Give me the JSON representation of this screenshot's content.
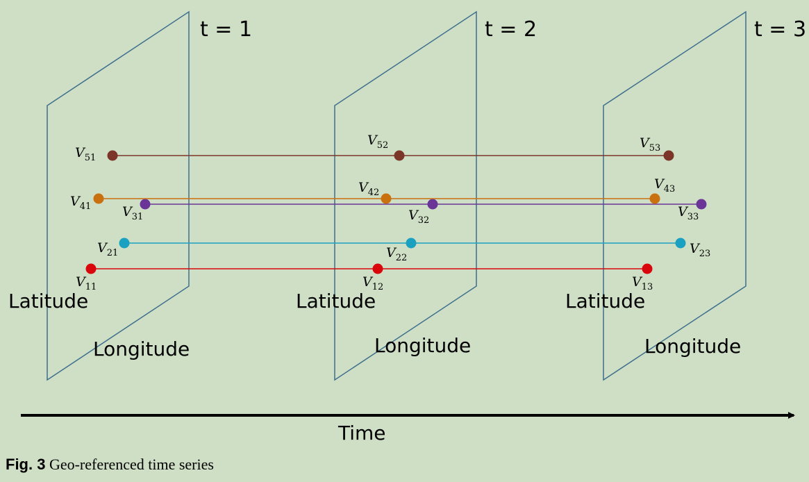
{
  "time_labels": [
    "t = 1",
    "t = 2",
    "t = 3"
  ],
  "axis_labels": {
    "latitude": "Latitude",
    "longitude": "Longitude",
    "time": "Time"
  },
  "caption": {
    "fig": "Fig. 3",
    "text": "Geo-referenced time series"
  },
  "series": [
    {
      "id": "1",
      "color": "#d9070b",
      "points": [
        {
          "v": "V",
          "sub": "11"
        },
        {
          "v": "V",
          "sub": "12"
        },
        {
          "v": "V",
          "sub": "13"
        }
      ]
    },
    {
      "id": "2",
      "color": "#1aa1c1",
      "points": [
        {
          "v": "V",
          "sub": "21"
        },
        {
          "v": "V",
          "sub": "22"
        },
        {
          "v": "V",
          "sub": "23"
        }
      ]
    },
    {
      "id": "3",
      "color": "#6b3598",
      "points": [
        {
          "v": "V",
          "sub": "31"
        },
        {
          "v": "V",
          "sub": "32"
        },
        {
          "v": "V",
          "sub": "33"
        }
      ]
    },
    {
      "id": "4",
      "color": "#c9700f",
      "points": [
        {
          "v": "V",
          "sub": "41"
        },
        {
          "v": "V",
          "sub": "42"
        },
        {
          "v": "V",
          "sub": "43"
        }
      ]
    },
    {
      "id": "5",
      "color": "#7b3529",
      "points": [
        {
          "v": "V",
          "sub": "51"
        },
        {
          "v": "V",
          "sub": "52"
        },
        {
          "v": "V",
          "sub": "53"
        }
      ]
    }
  ]
}
